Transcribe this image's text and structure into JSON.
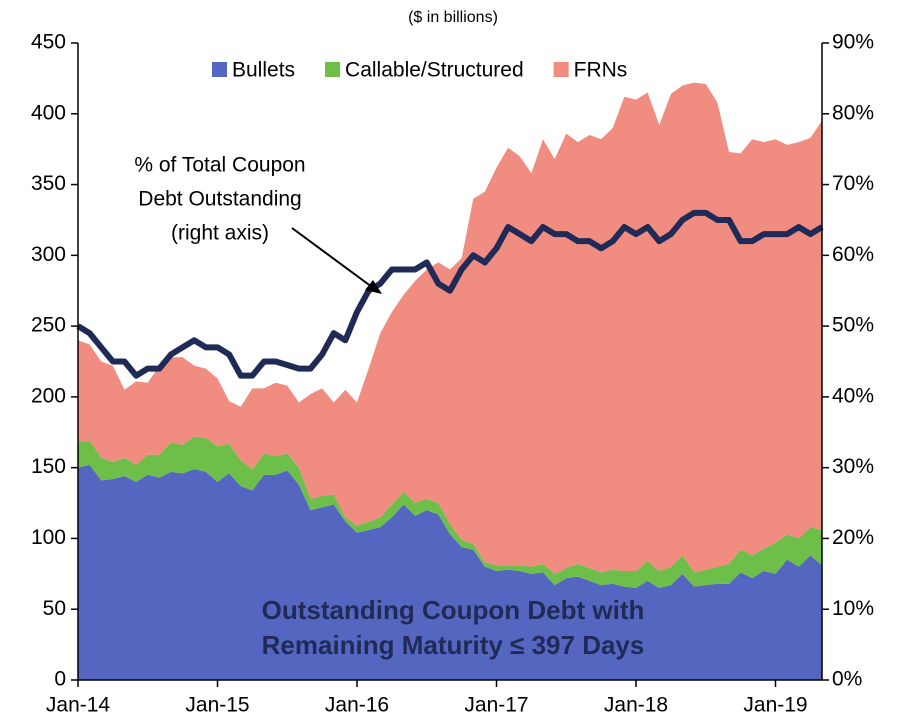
{
  "chart_data": {
    "type": "stacked_area_line",
    "subtitle": "($ in billions)",
    "annotation": [
      "% of Total Coupon",
      "Debt Outstanding",
      "(right axis)"
    ],
    "label": [
      "Outstanding Coupon Debt with",
      "Remaining Maturity ≤  397 Days"
    ],
    "categories": [
      "Jan-14",
      null,
      null,
      null,
      null,
      null,
      null,
      null,
      null,
      null,
      null,
      null,
      "Jan-15",
      null,
      null,
      null,
      null,
      null,
      null,
      null,
      null,
      null,
      null,
      null,
      "Jan-16",
      null,
      null,
      null,
      null,
      null,
      null,
      null,
      null,
      null,
      null,
      null,
      "Jan-17",
      null,
      null,
      null,
      null,
      null,
      null,
      null,
      null,
      null,
      null,
      null,
      "Jan-18",
      null,
      null,
      null,
      null,
      null,
      null,
      null,
      null,
      null,
      null,
      null,
      "Jan-19",
      null,
      null,
      null,
      null
    ],
    "series": [
      {
        "name": "Bullets",
        "color": "#5566c0",
        "values": [
          150,
          152,
          141,
          142,
          144,
          140,
          145,
          143,
          147,
          146,
          149,
          147,
          140,
          146,
          137,
          134,
          145,
          145,
          148,
          138,
          120,
          122,
          124,
          112,
          104,
          106,
          108,
          115,
          124,
          116,
          120,
          117,
          103,
          94,
          92,
          80,
          77,
          78,
          77,
          75,
          76,
          67,
          72,
          73,
          70,
          67,
          68,
          66,
          65,
          70,
          65,
          67,
          75,
          66,
          67,
          68,
          68,
          76,
          72,
          77,
          75,
          85,
          80,
          88,
          81
        ]
      },
      {
        "name": "Callable/Structured",
        "color": "#6dbf4a",
        "values": [
          18,
          17,
          16,
          12,
          13,
          12,
          14,
          16,
          21,
          20,
          23,
          24,
          25,
          21,
          18,
          15,
          15,
          13,
          12,
          12,
          8,
          8,
          7,
          3,
          5,
          6,
          7,
          9,
          9,
          9,
          8,
          8,
          7,
          5,
          4,
          3,
          4,
          3,
          4,
          5,
          6,
          8,
          7,
          9,
          9,
          9,
          10,
          11,
          12,
          14,
          12,
          13,
          13,
          10,
          11,
          12,
          14,
          16,
          16,
          16,
          22,
          18,
          20,
          20,
          25
        ]
      },
      {
        "name": "FRNs",
        "color": "#f08c80",
        "values": [
          72,
          68,
          68,
          68,
          48,
          59,
          51,
          63,
          60,
          62,
          50,
          49,
          48,
          30,
          38,
          57,
          46,
          52,
          48,
          46,
          74,
          76,
          65,
          90,
          87,
          108,
          130,
          136,
          139,
          157,
          162,
          170,
          180,
          199,
          244,
          262,
          281,
          295,
          289,
          278,
          300,
          293,
          307,
          298,
          306,
          306,
          312,
          335,
          333,
          331,
          315,
          334,
          332,
          346,
          343,
          328,
          291,
          280,
          294,
          287,
          285,
          275,
          280,
          275,
          289
        ]
      },
      {
        "name": "% of Total Coupon Debt Outstanding",
        "color": "#1f2a56",
        "axis": "y2",
        "values": [
          50,
          49,
          47,
          45,
          45,
          43,
          44,
          44,
          46,
          47,
          48,
          47,
          47,
          46,
          43,
          43,
          45,
          45,
          44.5,
          44,
          44,
          46,
          49,
          48,
          52,
          55,
          56,
          58,
          58,
          58,
          59,
          56,
          55,
          58,
          60,
          59,
          61,
          64,
          63,
          62,
          64,
          63,
          63,
          62,
          62,
          61,
          62,
          64,
          63,
          64,
          62,
          63,
          65,
          66,
          66,
          65,
          65,
          62,
          62,
          63,
          63,
          63,
          64,
          63,
          64
        ]
      }
    ],
    "ylim": [
      0,
      450
    ],
    "yticks": [
      0,
      50,
      100,
      150,
      200,
      250,
      300,
      350,
      400,
      450
    ],
    "y2lim": [
      0,
      90
    ],
    "y2ticks": [
      {
        "value": 0,
        "label": "0%"
      },
      {
        "value": 10,
        "label": "10%"
      },
      {
        "value": 20,
        "label": "20%"
      },
      {
        "value": 30,
        "label": "30%"
      },
      {
        "value": 40,
        "label": "40%"
      },
      {
        "value": 50,
        "label": "50%"
      },
      {
        "value": 60,
        "label": "60%"
      },
      {
        "value": 70,
        "label": "70%"
      },
      {
        "value": 80,
        "label": "80%"
      },
      {
        "value": 90,
        "label": "90%"
      }
    ],
    "legend": "top"
  }
}
